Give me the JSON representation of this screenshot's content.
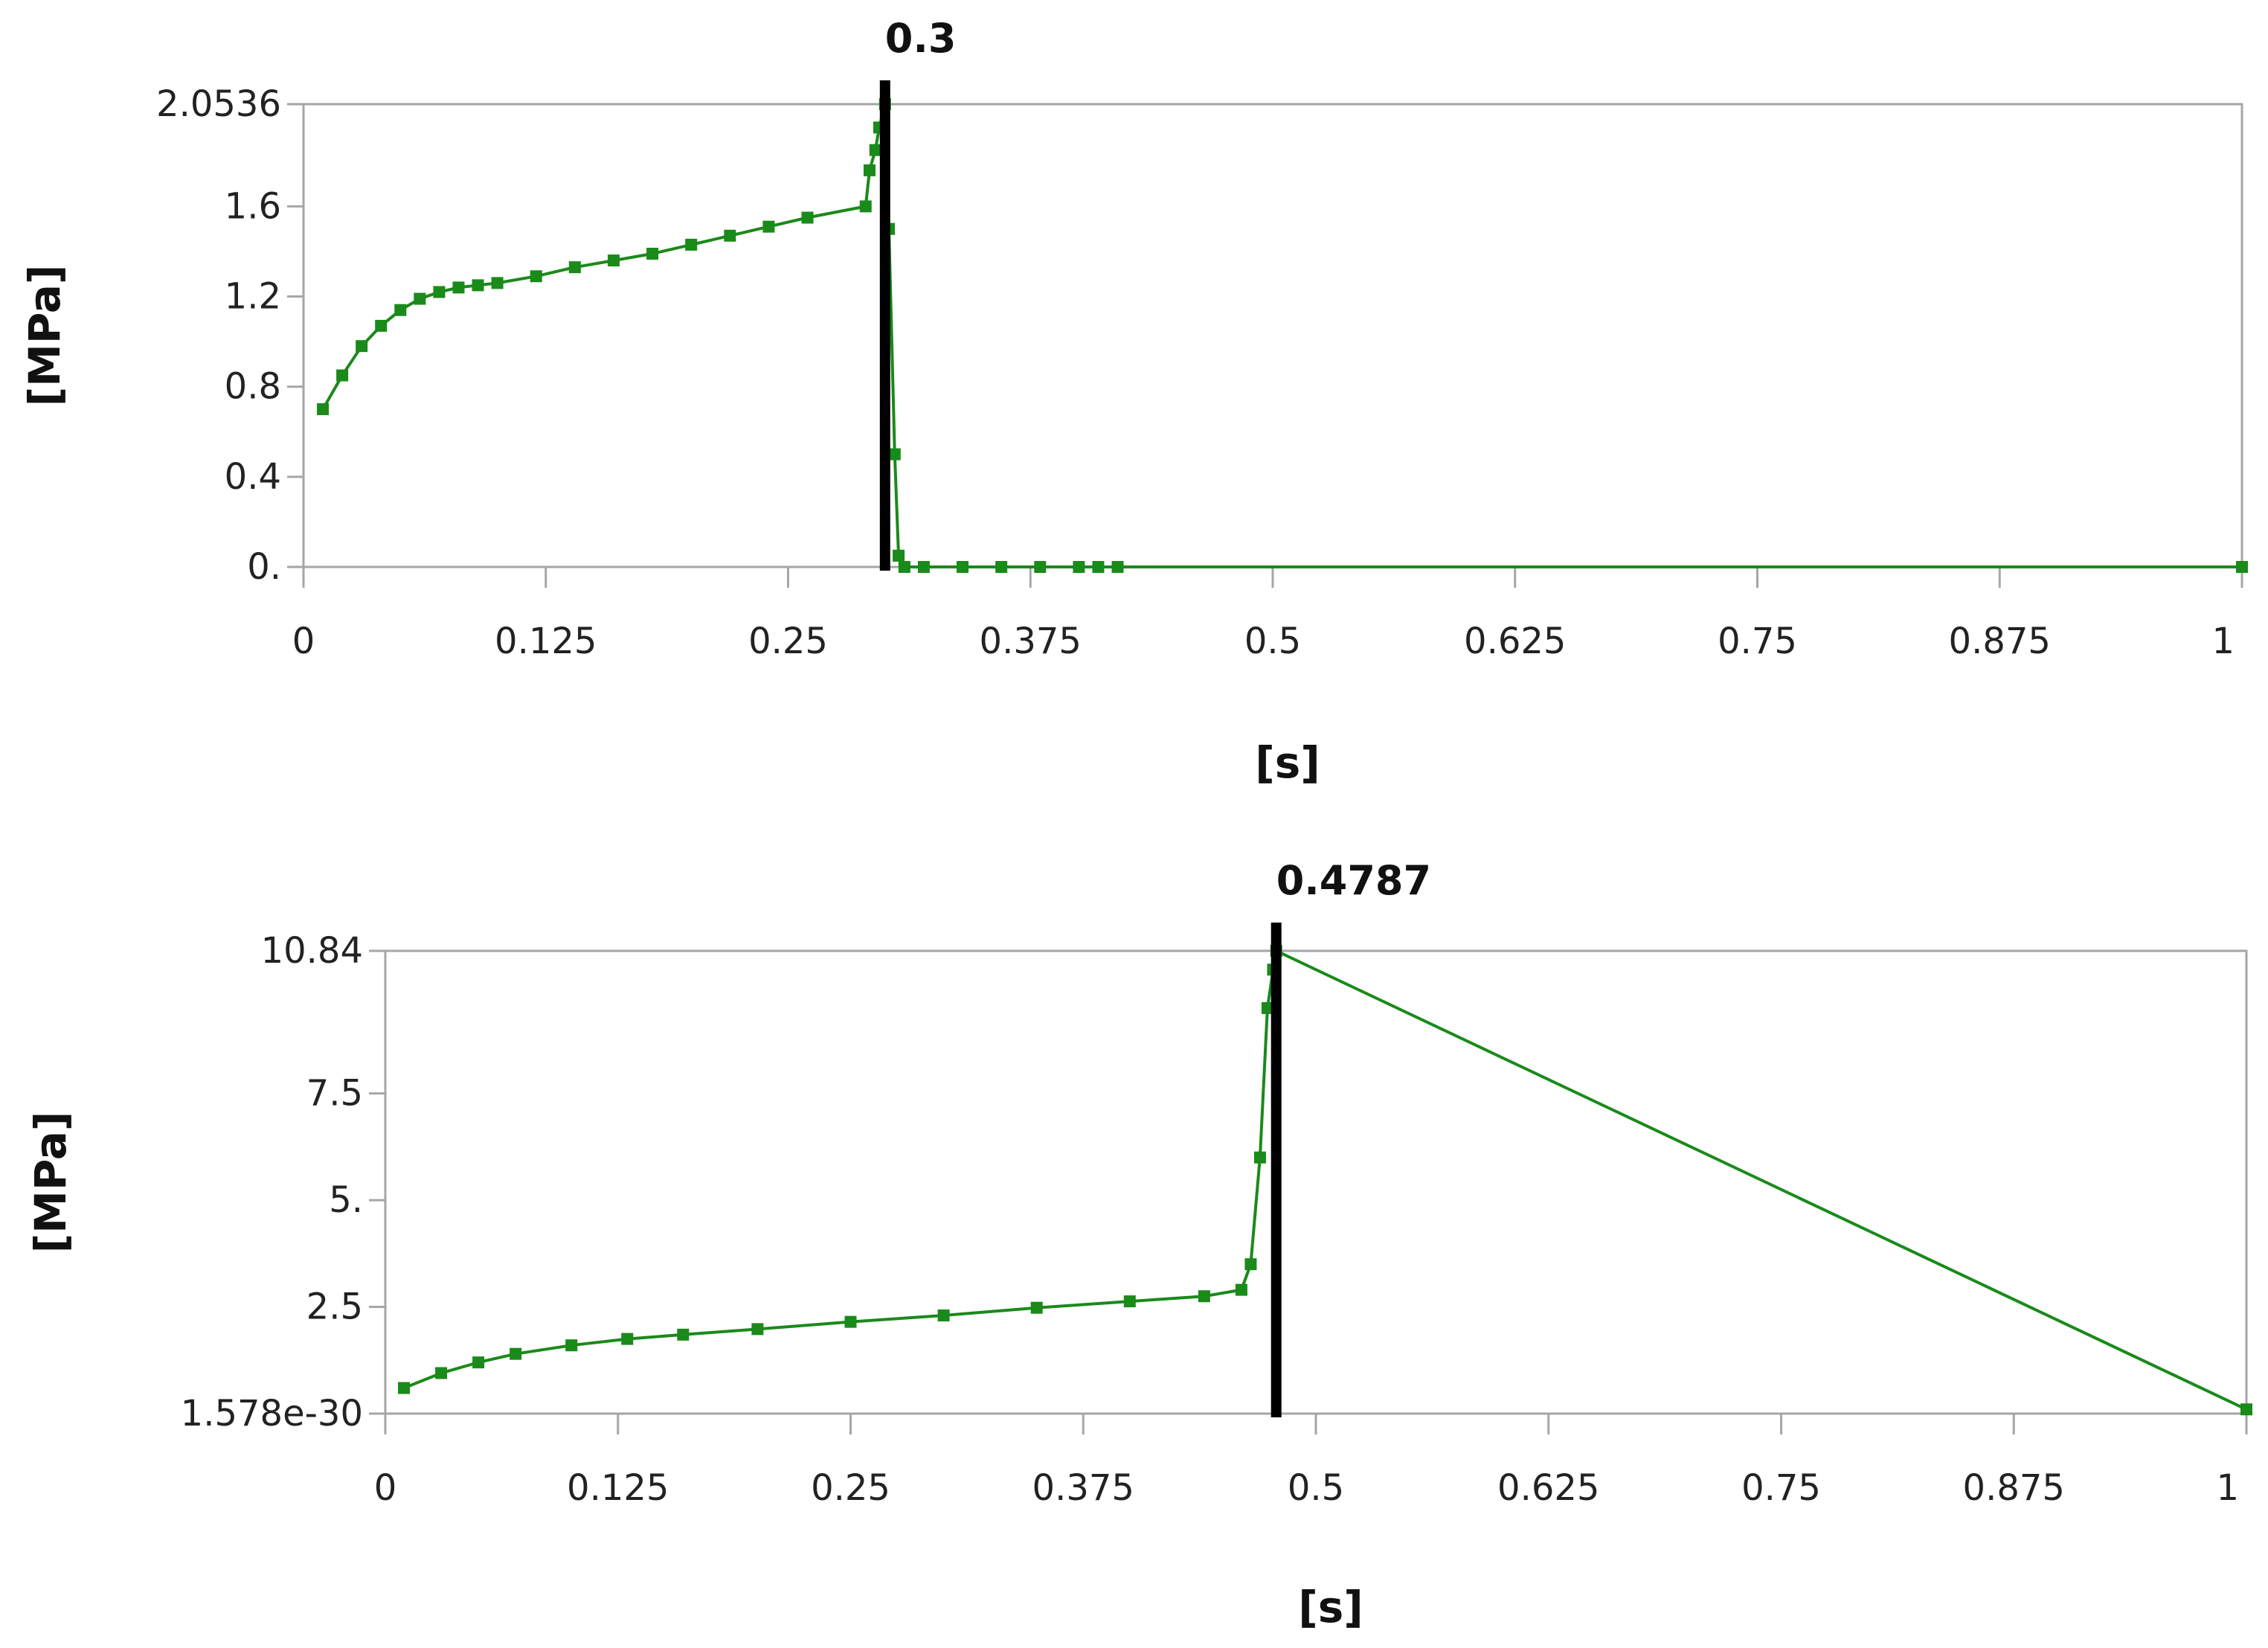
{
  "chart_data": [
    {
      "type": "line",
      "xlabel": "[s]",
      "ylabel": "[MPa]",
      "xlim": [
        0,
        1
      ],
      "ylim": [
        0,
        2.0536
      ],
      "xticks": [
        "0",
        "0.125",
        "0.25",
        "0.375",
        "0.5",
        "0.625",
        "0.75",
        "0.875",
        "1"
      ],
      "xtick_values": [
        0,
        0.125,
        0.25,
        0.375,
        0.5,
        0.625,
        0.75,
        0.875,
        1
      ],
      "yticks": [
        "0.",
        "0.4",
        "0.8",
        "1.2",
        "1.6",
        "2.0536"
      ],
      "ytick_values": [
        0,
        0.4,
        0.8,
        1.2,
        1.6,
        2.0536
      ],
      "marker": {
        "x": 0.3,
        "label": "0.3"
      },
      "series_color": "#1a8a1a",
      "marker_color": "#000000",
      "series": [
        {
          "x": [
            0.01,
            0.02,
            0.03,
            0.04,
            0.05,
            0.06,
            0.07,
            0.08,
            0.09,
            0.1,
            0.12,
            0.14,
            0.16,
            0.18,
            0.2,
            0.22,
            0.24,
            0.26,
            0.29,
            0.292,
            0.295,
            0.297,
            0.3,
            0.302,
            0.305,
            0.307,
            0.31,
            0.32,
            0.34,
            0.36,
            0.38,
            0.4,
            0.41,
            0.42,
            1.0
          ],
          "y": [
            0.7,
            0.85,
            0.98,
            1.07,
            1.14,
            1.19,
            1.22,
            1.24,
            1.25,
            1.26,
            1.29,
            1.33,
            1.36,
            1.39,
            1.43,
            1.47,
            1.51,
            1.55,
            1.6,
            1.76,
            1.85,
            1.95,
            2.0536,
            1.5,
            0.5,
            0.05,
            0.0,
            0.0,
            0.0,
            0.0,
            0.0,
            0.0,
            0.0,
            0.0,
            0.0
          ]
        }
      ]
    },
    {
      "type": "line",
      "xlabel": "[s]",
      "ylabel": "[MPa]",
      "xlim": [
        0,
        1
      ],
      "ylim": [
        0,
        10.84
      ],
      "xticks": [
        "0",
        "0.125",
        "0.25",
        "0.375",
        "0.5",
        "0.625",
        "0.75",
        "0.875",
        "1"
      ],
      "xtick_values": [
        0,
        0.125,
        0.25,
        0.375,
        0.5,
        0.625,
        0.75,
        0.875,
        1
      ],
      "yticks": [
        "1.578e-30",
        "2.5",
        "5.",
        "7.5",
        "10.84"
      ],
      "ytick_values": [
        0,
        2.5,
        5,
        7.5,
        10.84
      ],
      "marker": {
        "x": 0.4787,
        "label": "0.4787"
      },
      "series_color": "#1a8a1a",
      "marker_color": "#000000",
      "series": [
        {
          "x": [
            0.01,
            0.03,
            0.05,
            0.07,
            0.1,
            0.13,
            0.16,
            0.2,
            0.25,
            0.3,
            0.35,
            0.4,
            0.44,
            0.46,
            0.465,
            0.47,
            0.474,
            0.477,
            0.4787,
            1.0
          ],
          "y": [
            0.6,
            0.95,
            1.2,
            1.4,
            1.6,
            1.75,
            1.85,
            1.98,
            2.15,
            2.3,
            2.48,
            2.63,
            2.75,
            2.9,
            3.5,
            6.0,
            9.5,
            10.4,
            10.84,
            0.1
          ]
        }
      ]
    }
  ]
}
